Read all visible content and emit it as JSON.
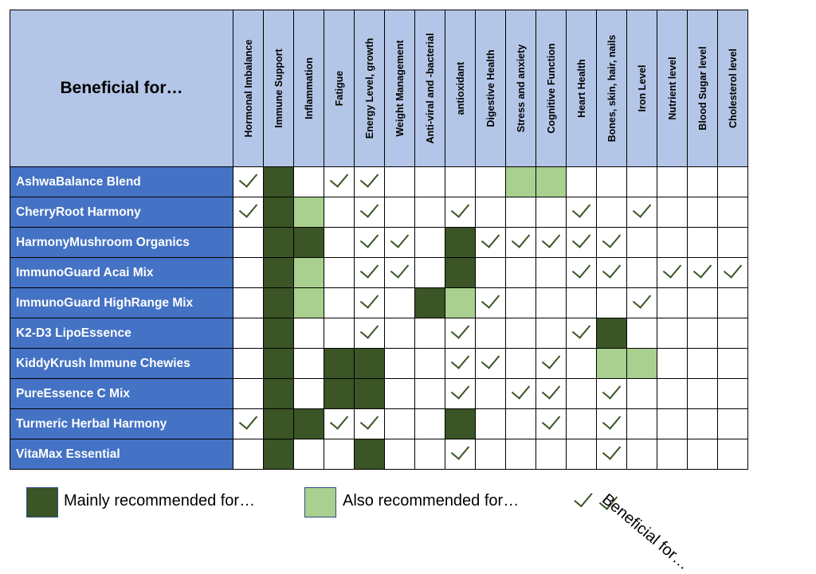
{
  "table": {
    "corner_title": "Beneficial for…",
    "columns": [
      "Hormonal Imbalance",
      "Immune  Support",
      "Inflammation",
      "Fatigue",
      "Energy Level, growth",
      "Weight Management",
      "Anti-viral and -bacterial",
      "antioxidant",
      "Digestive Health",
      "Stress and anxiety",
      "Cognitive Function",
      "Heart Health",
      "Bones, skin, hair, nails",
      "Iron Level",
      "Nutrient level",
      "Blood Sugar level",
      "Cholesterol level"
    ],
    "rows": [
      {
        "name": "AshwaBalance Blend",
        "cells": [
          "check",
          "main",
          "",
          "check",
          "check",
          "",
          "",
          "",
          "",
          "also",
          "also",
          "",
          "",
          "",
          "",
          "",
          ""
        ]
      },
      {
        "name": "CherryRoot Harmony",
        "cells": [
          "check",
          "main",
          "also",
          "",
          "check",
          "",
          "",
          "check",
          "",
          "",
          "",
          "check",
          "",
          "check",
          "",
          "",
          ""
        ]
      },
      {
        "name": "HarmonyMushroom Organics",
        "cells": [
          "",
          "main",
          "main",
          "",
          "check",
          "check",
          "",
          "main",
          "check",
          "check",
          "check",
          "check",
          "check",
          "",
          "",
          "",
          ""
        ]
      },
      {
        "name": "ImmunoGuard Acai Mix",
        "cells": [
          "",
          "main",
          "also",
          "",
          "check",
          "check",
          "",
          "main",
          "",
          "",
          "",
          "check",
          "check",
          "",
          "check",
          "check",
          "check"
        ]
      },
      {
        "name": "ImmunoGuard HighRange Mix",
        "cells": [
          "",
          "main",
          "also",
          "",
          "check",
          "",
          "main",
          "also",
          "check",
          "",
          "",
          "",
          "",
          "check",
          "",
          "",
          ""
        ]
      },
      {
        "name": "K2-D3 LipoEssence",
        "cells": [
          "",
          "main",
          "",
          "",
          "check",
          "",
          "",
          "check",
          "",
          "",
          "",
          "check",
          "main",
          "",
          "",
          "",
          ""
        ]
      },
      {
        "name": "KiddyKrush Immune Chewies",
        "cells": [
          "",
          "main",
          "",
          "main",
          "main",
          "",
          "",
          "check",
          "check",
          "",
          "check",
          "",
          "also",
          "also",
          "",
          "",
          ""
        ]
      },
      {
        "name": "PureEssence C Mix",
        "cells": [
          "",
          "main",
          "",
          "main",
          "main",
          "",
          "",
          "check",
          "",
          "check",
          "check",
          "",
          "check",
          "",
          "",
          "",
          ""
        ]
      },
      {
        "name": "Turmeric Herbal Harmony",
        "cells": [
          "check",
          "main",
          "main",
          "check",
          "check",
          "",
          "",
          "main",
          "",
          "",
          "check",
          "",
          "check",
          "",
          "",
          "",
          ""
        ]
      },
      {
        "name": "VitaMax Essential",
        "cells": [
          "",
          "main",
          "",
          "",
          "main",
          "",
          "",
          "check",
          "",
          "",
          "",
          "",
          "check",
          "",
          "",
          "",
          ""
        ]
      }
    ]
  },
  "legend": {
    "main_label": "Mainly recommended for…",
    "also_label": "Also recommended for…",
    "check_label": "Beneficial for…"
  },
  "colors": {
    "header_bg": "#b4c6e7",
    "row_header_bg": "#4472c4",
    "main": "#3b5526",
    "also": "#a9d08e",
    "check": "#3b5526"
  },
  "icons": {
    "check": "checkmark-icon"
  }
}
